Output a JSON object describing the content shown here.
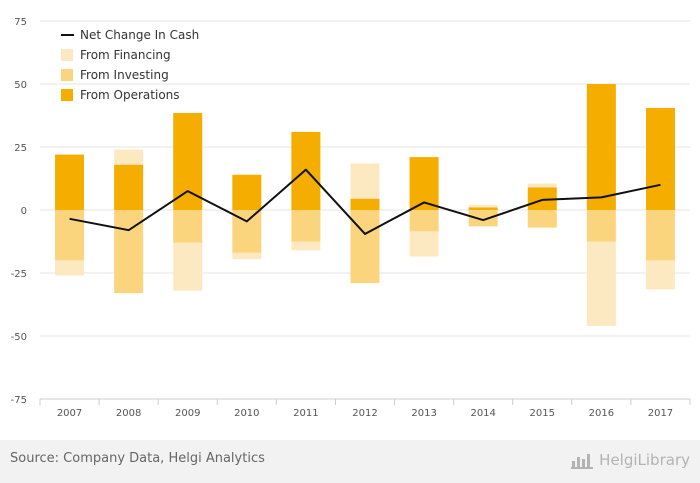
{
  "chart_data": {
    "type": "bar",
    "stacked": true,
    "categories": [
      "2007",
      "2008",
      "2009",
      "2010",
      "2011",
      "2012",
      "2013",
      "2014",
      "2015",
      "2016",
      "2017"
    ],
    "series": [
      {
        "name": "From Operations",
        "kind": "bar",
        "color": "#f5ad00",
        "values": [
          22,
          18,
          38.5,
          14,
          31,
          4.5,
          21,
          1,
          9,
          50,
          40.5
        ]
      },
      {
        "name": "From Investing",
        "kind": "bar",
        "color": "#fbd47e",
        "values": [
          -20,
          -33,
          -13,
          -17,
          -12.5,
          -29,
          -8.5,
          -6.5,
          -7,
          -12.5,
          -20
        ]
      },
      {
        "name": "From Financing",
        "kind": "bar",
        "color": "#fde9c1",
        "values": [
          -6,
          6,
          -19,
          -2.5,
          -3.5,
          14,
          -10,
          1,
          1.5,
          -33.5,
          -11.5
        ]
      },
      {
        "name": "Net Change In Cash",
        "kind": "line",
        "color": "#111111",
        "values": [
          -3.5,
          -8,
          7.5,
          -4.5,
          16,
          -9.5,
          3,
          -4,
          4,
          5,
          10
        ]
      }
    ],
    "yticks": [
      -75,
      -50,
      -25,
      0,
      25,
      50,
      75
    ],
    "ylim": [
      -75,
      75
    ],
    "grid": true,
    "legend_position": "top-left",
    "legend_order": [
      "Net Change In Cash",
      "From Financing",
      "From Investing",
      "From Operations"
    ]
  },
  "footer": {
    "source": "Source: Company Data, Helgi Analytics",
    "brand": "HelgiLibrary"
  },
  "colors": {
    "grid": "#e6e6e6",
    "footer_bg": "#f2f2f2"
  }
}
